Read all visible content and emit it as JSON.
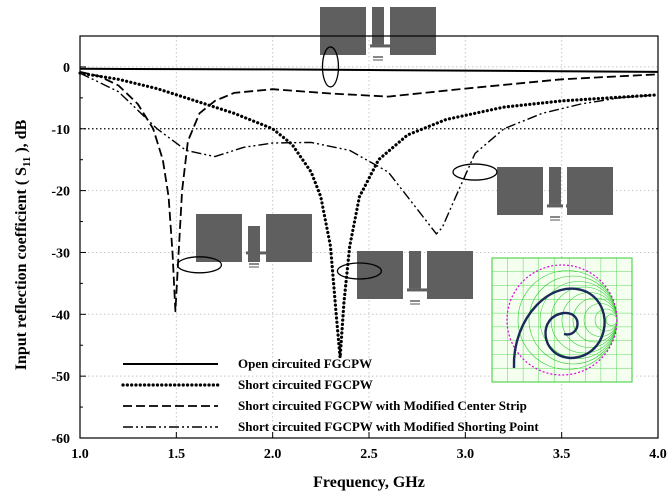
{
  "chart_data": {
    "type": "line",
    "title": "",
    "xlabel": "Frequency, GHz",
    "ylabel": "Input reflection coefficient ( S11 ), dB",
    "ylabel_parts": {
      "before": "Input reflection coefficient ( S",
      "sub": "11",
      "after": " ), dB"
    },
    "xlim": [
      1.0,
      4.0
    ],
    "ylim": [
      -60,
      5
    ],
    "xticks": [
      "1.0",
      "1.5",
      "2.0",
      "2.5",
      "3.0",
      "3.5",
      "4.0"
    ],
    "yticks": [
      "0",
      "-10",
      "-20",
      "-30",
      "-40",
      "-50",
      "-60"
    ],
    "grid": true,
    "reference_line_y": -10,
    "legend_position": "bottom-left",
    "series": [
      {
        "name": "Open circuited FGCPW",
        "style": "solid",
        "x": [
          1.0,
          1.5,
          2.0,
          2.5,
          3.0,
          3.5,
          4.0
        ],
        "y": [
          -0.3,
          -0.35,
          -0.4,
          -0.5,
          -0.6,
          -0.7,
          -0.8
        ]
      },
      {
        "name": "Short circuited FGCPW",
        "style": "dotted",
        "x": [
          1.0,
          1.2,
          1.4,
          1.6,
          1.8,
          2.0,
          2.1,
          2.2,
          2.25,
          2.3,
          2.33,
          2.35,
          2.37,
          2.4,
          2.45,
          2.55,
          2.7,
          2.9,
          3.2,
          3.5,
          4.0
        ],
        "y": [
          -1,
          -2,
          -3.5,
          -5.5,
          -7.5,
          -10,
          -12.5,
          -17,
          -21,
          -29,
          -40,
          -47,
          -38,
          -29,
          -21,
          -15,
          -11,
          -8.5,
          -6.5,
          -5.5,
          -4.5
        ]
      },
      {
        "name": "Short circuited FGCPW with Modified Center Strip",
        "style": "dashed",
        "x": [
          1.0,
          1.1,
          1.2,
          1.3,
          1.38,
          1.43,
          1.46,
          1.48,
          1.495,
          1.51,
          1.53,
          1.56,
          1.62,
          1.7,
          1.8,
          2.0,
          2.3,
          2.6,
          3.0,
          3.5,
          4.0
        ],
        "y": [
          -0.8,
          -1.5,
          -3,
          -6,
          -10,
          -15,
          -21,
          -30,
          -39.5,
          -31,
          -20,
          -12,
          -7.5,
          -5.5,
          -4.2,
          -3.6,
          -4.3,
          -4.8,
          -3.5,
          -2,
          -1.2
        ]
      },
      {
        "name": "Short circuited FGCPW with Modified Shorting Point",
        "style": "dash-dot-dot",
        "x": [
          1.0,
          1.2,
          1.4,
          1.55,
          1.7,
          1.85,
          2.0,
          2.2,
          2.4,
          2.6,
          2.75,
          2.85,
          2.88,
          2.95,
          3.05,
          3.2,
          3.4,
          3.6,
          3.8,
          4.0
        ],
        "y": [
          -1,
          -4,
          -10,
          -13.5,
          -14.5,
          -13,
          -12.3,
          -12.2,
          -13.5,
          -17,
          -23,
          -27,
          -26,
          -21,
          -14,
          -10,
          -7.5,
          -6,
          -5,
          -4.5
        ]
      }
    ],
    "insets": [
      {
        "name": "inset-open-circuit",
        "x": 2.3,
        "y": 0
      },
      {
        "name": "inset-modified-shorting-point",
        "x": 3.05,
        "y": -17
      },
      {
        "name": "inset-modified-center-strip",
        "x": 1.62,
        "y": -32
      },
      {
        "name": "inset-short-circuit",
        "x": 2.45,
        "y": -33
      },
      {
        "name": "inset-smith-chart"
      }
    ]
  },
  "colors": {
    "background": "#ffffff",
    "axis": "#000000",
    "grid": "#c8c8c8",
    "series": "#000000",
    "device_metal": "#5f5f5f",
    "smith_grid": "#33cc33",
    "smith_circle": "#dd00dd",
    "smith_trace": "#1c2a5a"
  }
}
